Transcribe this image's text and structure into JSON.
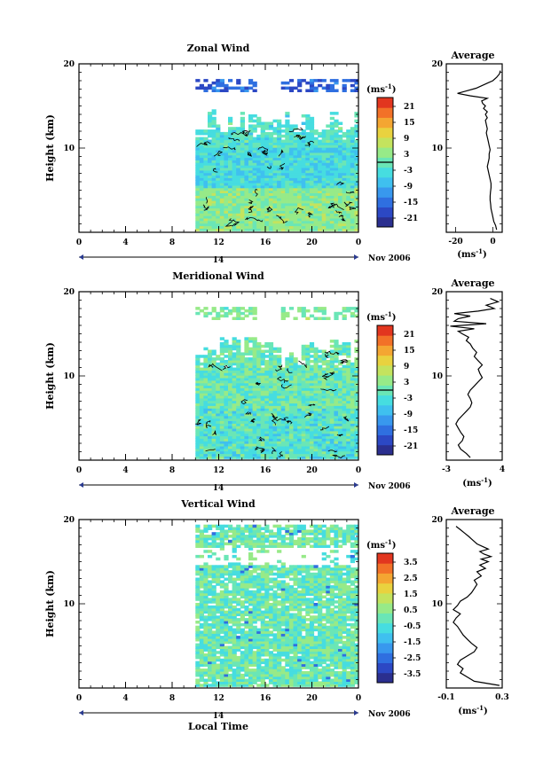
{
  "chart_data": [
    {
      "type": "heatmap",
      "title": "Zonal Wind",
      "ylabel": "Height (km)",
      "xlim": [
        0,
        24
      ],
      "ylim": [
        0,
        20
      ],
      "x_ticks": [
        "0",
        "4",
        "8",
        "12",
        "16",
        "20",
        "0"
      ],
      "y_ticks": [
        "10",
        "20"
      ],
      "date_label": "14",
      "date_suffix": "Nov 2006",
      "colorbar": {
        "unit_label": "(ms",
        "unit_exp": "-1",
        "unit_close": ")",
        "ticks": [
          "21",
          "15",
          "9",
          "3",
          "-3",
          "-9",
          "-15",
          "-21"
        ],
        "range": [
          -24,
          24
        ],
        "zero_marker": true
      },
      "data_extent": {
        "lower_start_hour": 10,
        "lower_top_km": 14.5,
        "upper_band_km": [
          16.5,
          18
        ]
      },
      "average": {
        "title": "Average",
        "xlim": [
          -25,
          5
        ],
        "x_ticks": [
          "-20",
          "0"
        ],
        "xlabel": "(ms",
        "xlabel_exp": "-1",
        "xlabel_close": ")",
        "y_ticks": [
          "10",
          "20"
        ],
        "profile_height_km": [
          0.3,
          0.8,
          1.3,
          1.8,
          2.3,
          2.8,
          3.3,
          3.8,
          4.3,
          4.8,
          5.3,
          5.8,
          6.3,
          6.8,
          7.3,
          7.8,
          8.3,
          8.8,
          9.3,
          9.8,
          10.3,
          10.8,
          11.3,
          11.8,
          12.3,
          12.8,
          13.3,
          13.6,
          14.0,
          14.3,
          14.7,
          15.0,
          15.3,
          15.6,
          15.9,
          16.2,
          16.5,
          16.8,
          17.1,
          17.4,
          17.7,
          18.0,
          18.4,
          18.8,
          19.2
        ],
        "profile_value": [
          2.0,
          1.5,
          0.5,
          0.0,
          -0.5,
          -1.0,
          -1.2,
          -1.5,
          -1.5,
          -1.3,
          -1.0,
          -1.0,
          -1.5,
          -2.0,
          -2.5,
          -3.0,
          -2.5,
          -2.0,
          -2.0,
          -1.5,
          -2.0,
          -2.5,
          -3.0,
          -3.5,
          -3.0,
          -3.5,
          -4.0,
          -3.0,
          -4.0,
          -3.0,
          -5.0,
          -4.0,
          -5.5,
          -6.0,
          -3.0,
          -12.0,
          -19.0,
          -14.0,
          -9.0,
          -6.0,
          -3.0,
          0.0,
          2.0,
          3.5,
          4.0
        ]
      }
    },
    {
      "type": "heatmap",
      "title": "Meridional Wind",
      "ylabel": "Height (km)",
      "xlim": [
        0,
        24
      ],
      "ylim": [
        0,
        20
      ],
      "x_ticks": [
        "0",
        "4",
        "8",
        "12",
        "16",
        "20",
        "0"
      ],
      "y_ticks": [
        "10",
        "20"
      ],
      "date_label": "14",
      "date_suffix": "Nov 2006",
      "colorbar": {
        "unit_label": "(ms",
        "unit_exp": "-1",
        "unit_close": ")",
        "ticks": [
          "21",
          "15",
          "9",
          "3",
          "-3",
          "-9",
          "-15",
          "-21"
        ],
        "range": [
          -24,
          24
        ],
        "zero_marker": true
      },
      "data_extent": {
        "lower_start_hour": 10,
        "lower_top_km": 14.5,
        "upper_band_km": [
          16.5,
          18
        ]
      },
      "average": {
        "title": "Average",
        "xlim": [
          -3,
          4
        ],
        "x_ticks": [
          "-3",
          "4"
        ],
        "xlabel": "(ms",
        "xlabel_exp": "-1",
        "xlabel_close": ")",
        "y_ticks": [
          "10",
          "20"
        ],
        "profile_height_km": [
          0.3,
          0.8,
          1.3,
          1.8,
          2.3,
          2.8,
          3.3,
          3.8,
          4.3,
          4.8,
          5.3,
          5.8,
          6.3,
          6.8,
          7.3,
          7.8,
          8.3,
          8.8,
          9.3,
          9.8,
          10.3,
          10.8,
          11.3,
          11.8,
          12.3,
          12.8,
          13.3,
          13.8,
          14.2,
          14.6,
          15.0,
          15.3,
          15.6,
          15.9,
          16.2,
          16.5,
          16.8,
          17.1,
          17.4,
          17.7,
          18.0,
          18.4,
          18.8,
          19.2
        ],
        "profile_value": [
          0.0,
          -0.5,
          -1.2,
          -1.5,
          -1.0,
          -0.8,
          -1.2,
          -1.5,
          -1.8,
          -1.5,
          -1.0,
          -0.5,
          0.0,
          0.2,
          0.0,
          -0.3,
          0.0,
          0.5,
          1.0,
          1.5,
          1.2,
          1.0,
          1.5,
          1.0,
          0.5,
          0.8,
          0.3,
          0.0,
          -0.5,
          -0.2,
          -1.0,
          -1.5,
          0.5,
          -2.5,
          2.0,
          -2.0,
          -1.5,
          0.0,
          -2.0,
          1.0,
          3.0,
          2.0,
          3.5,
          2.5
        ]
      }
    },
    {
      "type": "heatmap",
      "title": "Vertical Wind",
      "ylabel": "Height (km)",
      "xlabel": "Local Time",
      "xlim": [
        0,
        24
      ],
      "ylim": [
        0,
        20
      ],
      "x_ticks": [
        "0",
        "4",
        "8",
        "12",
        "16",
        "20",
        "0"
      ],
      "y_ticks": [
        "10",
        "20"
      ],
      "date_label": "14",
      "date_suffix": "Nov 2006",
      "colorbar": {
        "unit_label": "(ms",
        "unit_exp": "-1",
        "unit_close": ")",
        "ticks": [
          "3.5",
          "2.5",
          "1.5",
          "0.5",
          "-0.5",
          "-1.5",
          "-2.5",
          "-3.5"
        ],
        "range": [
          -4,
          4
        ],
        "zero_marker": false
      },
      "data_extent": {
        "lower_start_hour": 10,
        "lower_top_km": 19.3,
        "gap_km": [
          14.5,
          16.5
        ]
      },
      "average": {
        "title": "Average",
        "xlim": [
          -0.1,
          0.3
        ],
        "x_ticks": [
          "-0.1",
          "0.3"
        ],
        "xlabel": "(ms",
        "xlabel_exp": "-1",
        "xlabel_close": ")",
        "y_ticks": [
          "10",
          "20"
        ],
        "profile_height_km": [
          0.3,
          0.8,
          1.3,
          1.8,
          2.3,
          2.8,
          3.3,
          3.8,
          4.3,
          4.8,
          5.3,
          5.8,
          6.3,
          6.8,
          7.3,
          7.8,
          8.3,
          8.8,
          9.3,
          9.8,
          10.3,
          10.8,
          11.3,
          11.8,
          12.3,
          12.8,
          13.3,
          13.8,
          14.2,
          14.6,
          15.0,
          15.3,
          15.6,
          15.9,
          16.2,
          16.5,
          16.8,
          17.1,
          17.4,
          17.7,
          18.0,
          18.4,
          18.8,
          19.2
        ],
        "profile_value": [
          0.28,
          0.1,
          0.05,
          0.0,
          0.02,
          -0.02,
          0.0,
          0.05,
          0.1,
          0.12,
          0.08,
          0.05,
          0.02,
          0.0,
          -0.02,
          -0.05,
          -0.03,
          0.0,
          -0.05,
          -0.02,
          0.0,
          0.05,
          0.08,
          0.1,
          0.12,
          0.1,
          0.15,
          0.12,
          0.18,
          0.14,
          0.2,
          0.15,
          0.22,
          0.17,
          0.14,
          0.2,
          0.16,
          0.12,
          0.1,
          0.08,
          0.06,
          0.03,
          0.0,
          -0.03
        ]
      }
    }
  ]
}
